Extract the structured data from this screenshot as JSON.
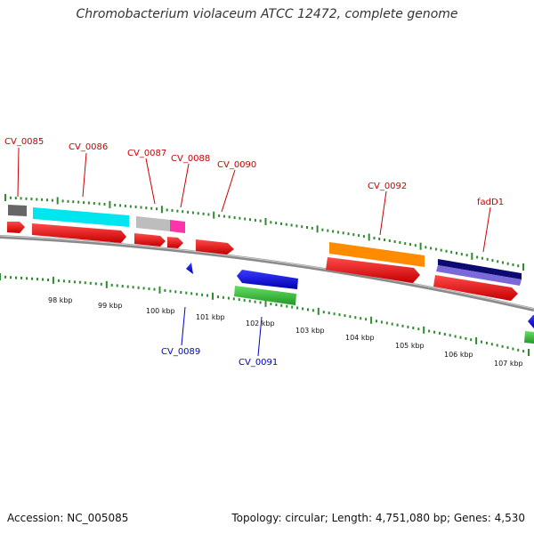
{
  "title": "Chromobacterium violaceum ATCC 12472, complete genome",
  "footer": {
    "accession": "Accession: NC_005085",
    "info": "Topology: circular; Length: 4,751,080 bp; Genes: 4,530"
  },
  "colors": {
    "backbone": "#8a8a8a",
    "tick": "#2e8b2e",
    "label_forward": "#cc0000",
    "label_reverse": "#0000cc"
  },
  "kbp_labels": [
    "98 kbp",
    "99 kbp",
    "100 kbp",
    "101 kbp",
    "102 kbp",
    "103 kbp",
    "104 kbp",
    "105 kbp",
    "106 kbp",
    "107 kbp"
  ],
  "gene_labels": [
    {
      "name": "CV_0085",
      "strand": "forward"
    },
    {
      "name": "CV_0086",
      "strand": "forward"
    },
    {
      "name": "CV_0087",
      "strand": "forward"
    },
    {
      "name": "CV_0088",
      "strand": "forward"
    },
    {
      "name": "CV_0090",
      "strand": "forward"
    },
    {
      "name": "CV_0092",
      "strand": "forward"
    },
    {
      "name": "fadD1",
      "strand": "forward"
    },
    {
      "name": "CV_0089",
      "strand": "reverse"
    },
    {
      "name": "CV_0091",
      "strand": "reverse"
    }
  ],
  "features": [
    {
      "id": "cog-gray",
      "color": "#666666"
    },
    {
      "id": "cog-cyan",
      "color": "#00e5ee"
    },
    {
      "id": "cog-lightgray",
      "color": "#bdbdbd"
    },
    {
      "id": "cog-magenta",
      "color": "#ff33aa"
    },
    {
      "id": "cog-orange",
      "color": "#ff8c00"
    },
    {
      "id": "cog-navy",
      "color": "#0a0a70"
    },
    {
      "id": "cog-lavender",
      "color": "#7b68d9"
    },
    {
      "id": "cds-red",
      "color": "#ee0000"
    },
    {
      "id": "cds-blue",
      "color": "#0000ee"
    },
    {
      "id": "cog-green",
      "color": "#33bb33"
    }
  ]
}
